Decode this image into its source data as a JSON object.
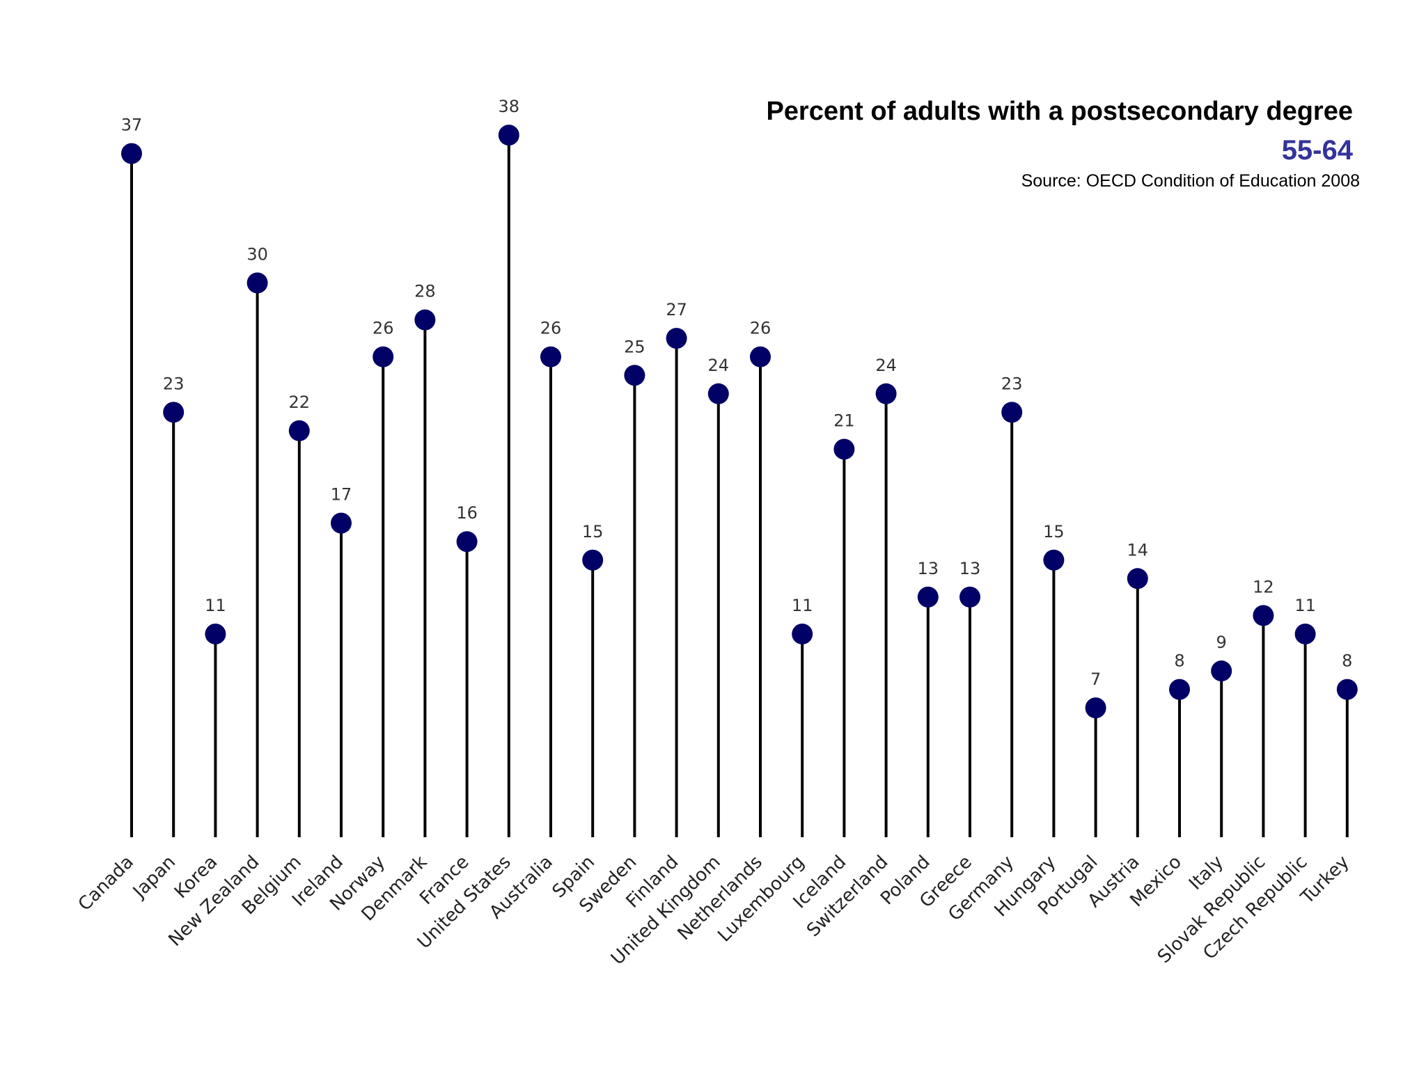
{
  "chart_data": {
    "type": "lollipop",
    "title": "Percent of adults with a postsecondary degree",
    "subtitle": "55-64",
    "source": "Source: OECD Condition of Education 2008",
    "xlabel": "",
    "ylabel": "",
    "ylim": [
      0,
      38
    ],
    "grid": false,
    "categories": [
      "Canada",
      "Japan",
      "Korea",
      "New Zealand",
      "Belgium",
      "Ireland",
      "Norway",
      "Denmark",
      "France",
      "United States",
      "Australia",
      "Spain",
      "Sweden",
      "Finland",
      "United Kingdom",
      "Netherlands",
      "Luxembourg",
      "Iceland",
      "Switzerland",
      "Poland",
      "Greece",
      "Germany",
      "Hungary",
      "Portugal",
      "Austria",
      "Mexico",
      "Italy",
      "Slovak Republic",
      "Czech Republic",
      "Turkey"
    ],
    "values": [
      37,
      23,
      11,
      30,
      22,
      17,
      26,
      28,
      16,
      38,
      26,
      15,
      25,
      27,
      24,
      26,
      11,
      21,
      24,
      13,
      13,
      23,
      15,
      7,
      14,
      8,
      9,
      12,
      11,
      8
    ],
    "colors": {
      "marker": "#000066",
      "stem": "#000000",
      "subtitle": "#333399"
    }
  }
}
